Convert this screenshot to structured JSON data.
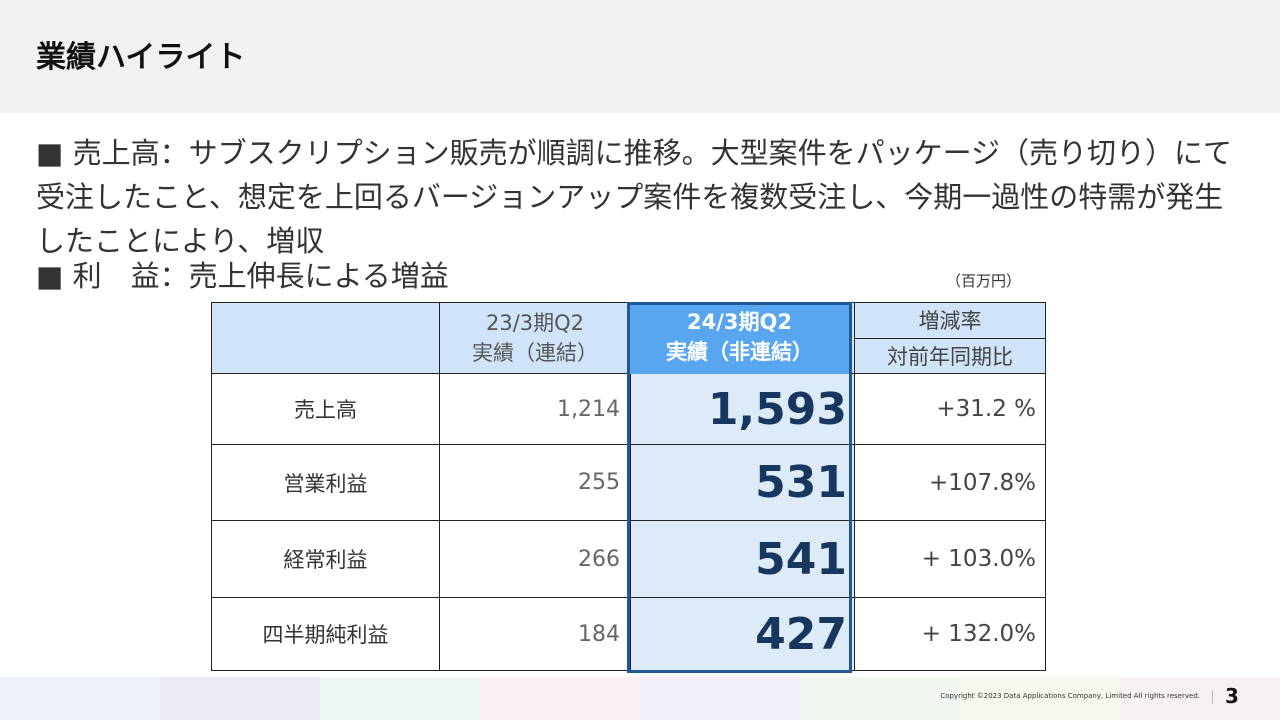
{
  "slide": {
    "title": "業績ハイライト",
    "bullet1": "■ 売上高：サブスクリプション販売が順調に推移。大型案件をパッケージ（売り切り）にて受注したこと、想定を上回るバージョンアップ案件を複数受注し、今期一過性の特需が発生したことにより、増収",
    "bullet2": "■ 利　益：売上伸長による増益",
    "unit": "（百万円）"
  },
  "table": {
    "col_prev_line1": "23/3期Q2",
    "col_prev_line2": "実績（連結）",
    "col_cur_line1": "24/3期Q2",
    "col_cur_line2": "実績（非連結）",
    "col_rate_line1": "増減率",
    "col_rate_line2": "対前年同期比",
    "rows": [
      {
        "label": "売上高",
        "prev": "1,214",
        "cur": "1,593",
        "rate": "+31.2 %"
      },
      {
        "label": "営業利益",
        "prev": "255",
        "cur": "531",
        "rate": "+107.8%"
      },
      {
        "label": "経常利益",
        "prev": "266",
        "cur": "541",
        "rate": "+ 103.0%"
      },
      {
        "label": "四半期純利益",
        "prev": "184",
        "cur": "427",
        "rate": "+ 132.0%"
      }
    ]
  },
  "footer": {
    "copyright": "Copyright ©2023 Data Applications Company, Limited All rights reserved.",
    "page": "3",
    "colors": [
      "#eef1fa",
      "#e9eaf4",
      "#eef6f3",
      "#fcf0f2",
      "#f2eef7",
      "#f0f7f0",
      "#f4f8ee",
      "#f7f1f1"
    ]
  }
}
